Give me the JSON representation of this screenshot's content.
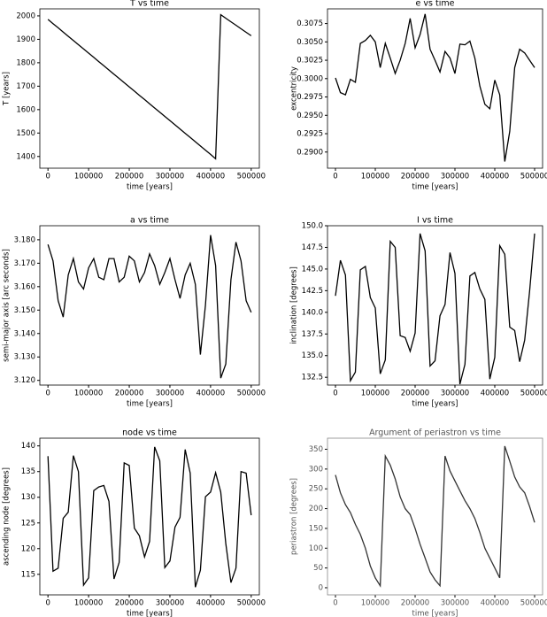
{
  "chart_data": [
    {
      "type": "line",
      "title": "T vs time",
      "xlabel": "time [years]",
      "ylabel": "T [years]",
      "color": "#000000",
      "x": [
        0,
        12500,
        25000,
        37500,
        50000,
        62500,
        75000,
        87500,
        100000,
        112500,
        125000,
        137500,
        150000,
        162500,
        175000,
        187500,
        200000,
        212500,
        225000,
        237500,
        250000,
        262500,
        275000,
        287500,
        300000,
        312500,
        325000,
        337500,
        350000,
        362500,
        375000,
        387500,
        400000,
        412500,
        425000,
        437500,
        450000,
        462500,
        475000,
        487500,
        500000
      ],
      "values": [
        1985,
        1967,
        1949,
        1931,
        1913,
        1895,
        1877,
        1859,
        1841,
        1823,
        1805,
        1787,
        1769,
        1751,
        1733,
        1715,
        1697,
        1679,
        1661,
        1643,
        1625,
        1607,
        1589,
        1571,
        1553,
        1535,
        1517,
        1499,
        1481,
        1463,
        1445,
        1427,
        1409,
        1390,
        2005,
        1990,
        1975,
        1960,
        1945,
        1930,
        1915
      ],
      "xlim": [
        -20000,
        520000
      ],
      "xticks": [
        0,
        100000,
        200000,
        300000,
        400000,
        500000
      ],
      "ylim": [
        1350,
        2030
      ],
      "yticks": [
        1400,
        1500,
        1600,
        1700,
        1800,
        1900,
        2000
      ]
    },
    {
      "type": "line",
      "title": "e vs time",
      "xlabel": "time [years]",
      "ylabel": "excentricity",
      "color": "#000000",
      "x": [
        0,
        12500,
        25000,
        37500,
        50000,
        62500,
        75000,
        87500,
        100000,
        112500,
        125000,
        137500,
        150000,
        162500,
        175000,
        187500,
        200000,
        212500,
        225000,
        237500,
        250000,
        262500,
        275000,
        287500,
        300000,
        312500,
        325000,
        337500,
        350000,
        362500,
        375000,
        387500,
        400000,
        412500,
        425000,
        437500,
        450000,
        462500,
        475000,
        487500,
        500000
      ],
      "values": [
        0.3001,
        0.2981,
        0.2978,
        0.2999,
        0.2995,
        0.3048,
        0.3052,
        0.3059,
        0.305,
        0.3015,
        0.3048,
        0.3028,
        0.3007,
        0.3025,
        0.3048,
        0.3082,
        0.3042,
        0.306,
        0.3088,
        0.304,
        0.3025,
        0.3009,
        0.3037,
        0.3028,
        0.3007,
        0.3047,
        0.3046,
        0.3051,
        0.3028,
        0.299,
        0.2965,
        0.2959,
        0.2998,
        0.2978,
        0.2887,
        0.2928,
        0.3015,
        0.304,
        0.3035,
        0.3025,
        0.3015
      ],
      "xlim": [
        -20000,
        520000
      ],
      "xticks": [
        0,
        100000,
        200000,
        300000,
        400000,
        500000
      ],
      "ylim": [
        0.2878,
        0.3095
      ],
      "yticks": [
        {
          "value": 0.29,
          "label": "0.2900"
        },
        {
          "value": 0.2925,
          "label": "0.2925"
        },
        {
          "value": 0.295,
          "label": "0.2950"
        },
        {
          "value": 0.2975,
          "label": "0.2975"
        },
        {
          "value": 0.3,
          "label": "0.3000"
        },
        {
          "value": 0.3025,
          "label": "0.3025"
        },
        {
          "value": 0.305,
          "label": "0.3050"
        },
        {
          "value": 0.3075,
          "label": "0.3075"
        }
      ]
    },
    {
      "type": "line",
      "title": "a vs time",
      "xlabel": "time [years]",
      "ylabel": "semi-major axis [arc seconds]",
      "color": "#000000",
      "x": [
        0,
        12500,
        25000,
        37500,
        50000,
        62500,
        75000,
        87500,
        100000,
        112500,
        125000,
        137500,
        150000,
        162500,
        175000,
        187500,
        200000,
        212500,
        225000,
        237500,
        250000,
        262500,
        275000,
        287500,
        300000,
        312500,
        325000,
        337500,
        350000,
        362500,
        375000,
        387500,
        400000,
        412500,
        425000,
        437500,
        450000,
        462500,
        475000,
        487500,
        500000
      ],
      "values": [
        3.178,
        3.171,
        3.154,
        3.147,
        3.165,
        3.172,
        3.162,
        3.159,
        3.168,
        3.172,
        3.164,
        3.163,
        3.172,
        3.172,
        3.162,
        3.164,
        3.173,
        3.171,
        3.162,
        3.166,
        3.174,
        3.169,
        3.161,
        3.166,
        3.172,
        3.163,
        3.155,
        3.165,
        3.17,
        3.161,
        3.131,
        3.152,
        3.182,
        3.169,
        3.121,
        3.127,
        3.163,
        3.179,
        3.171,
        3.154,
        3.149
      ],
      "xlim": [
        -20000,
        520000
      ],
      "xticks": [
        0,
        100000,
        200000,
        300000,
        400000,
        500000
      ],
      "ylim": [
        3.118,
        3.186
      ],
      "yticks": [
        {
          "value": 3.12,
          "label": "3.120"
        },
        {
          "value": 3.13,
          "label": "3.130"
        },
        {
          "value": 3.14,
          "label": "3.140"
        },
        {
          "value": 3.15,
          "label": "3.150"
        },
        {
          "value": 3.16,
          "label": "3.160"
        },
        {
          "value": 3.17,
          "label": "3.170"
        },
        {
          "value": 3.18,
          "label": "3.180"
        }
      ]
    },
    {
      "type": "line",
      "title": "I vs time",
      "xlabel": "time [years]",
      "ylabel": "inclination [degrees]",
      "color": "#000000",
      "x": [
        0,
        12500,
        25000,
        37500,
        50000,
        62500,
        75000,
        87500,
        100000,
        112500,
        125000,
        137500,
        150000,
        162500,
        175000,
        187500,
        200000,
        212500,
        225000,
        237500,
        250000,
        262500,
        275000,
        287500,
        300000,
        312500,
        325000,
        337500,
        350000,
        362500,
        375000,
        387500,
        400000,
        412500,
        425000,
        437500,
        450000,
        462500,
        475000,
        487500,
        500000
      ],
      "values": [
        141.9,
        146.0,
        144.3,
        132.1,
        133.1,
        144.9,
        145.3,
        141.7,
        140.5,
        132.9,
        134.5,
        148.2,
        147.5,
        137.3,
        137.1,
        135.5,
        137.6,
        149.1,
        147.1,
        133.8,
        134.4,
        139.6,
        140.9,
        146.9,
        144.5,
        131.7,
        134.0,
        144.2,
        144.6,
        142.7,
        141.5,
        132.3,
        134.8,
        147.7,
        146.7,
        138.3,
        137.9,
        134.3,
        136.8,
        142.5,
        149.1
      ],
      "xlim": [
        -20000,
        520000
      ],
      "xticks": [
        0,
        100000,
        200000,
        300000,
        400000,
        500000
      ],
      "ylim": [
        131.6,
        150
      ],
      "yticks": [
        132.5,
        {
          "value": 135,
          "label": "135.0"
        },
        137.5,
        {
          "value": 140,
          "label": "140.0"
        },
        142.5,
        {
          "value": 145,
          "label": "145.0"
        },
        147.5,
        {
          "value": 150,
          "label": "150.0"
        }
      ]
    },
    {
      "type": "line",
      "title": "node vs time",
      "xlabel": "time [years]",
      "ylabel": "ascending node [degrees]",
      "color": "#000000",
      "x": [
        0,
        12500,
        25000,
        37500,
        50000,
        62500,
        75000,
        87500,
        100000,
        112500,
        125000,
        137500,
        150000,
        162500,
        175000,
        187500,
        200000,
        212500,
        225000,
        237500,
        250000,
        262500,
        275000,
        287500,
        300000,
        312500,
        325000,
        337500,
        350000,
        362500,
        375000,
        387500,
        400000,
        412500,
        425000,
        437500,
        450000,
        462500,
        475000,
        487500,
        500000
      ],
      "values": [
        138.0,
        115.6,
        116.2,
        125.9,
        127.1,
        138.1,
        135.0,
        112.9,
        114.3,
        131.3,
        132.0,
        132.3,
        129.2,
        114.1,
        117.3,
        136.7,
        136.2,
        124.0,
        122.5,
        118.4,
        121.4,
        139.8,
        137.1,
        116.3,
        117.6,
        124.2,
        126.1,
        139.3,
        134.7,
        112.5,
        115.8,
        130.1,
        131.0,
        134.8,
        131.0,
        121.0,
        113.4,
        116.2,
        135.0,
        134.7,
        126.5
      ],
      "xlim": [
        -20000,
        520000
      ],
      "xticks": [
        0,
        100000,
        200000,
        300000,
        400000,
        500000
      ],
      "ylim": [
        111,
        141.5
      ],
      "yticks": [
        115,
        120,
        125,
        130,
        135,
        140
      ]
    },
    {
      "type": "line",
      "title": "Argument of periastron vs time",
      "xlabel": "time [years]",
      "ylabel": "periastron [degrees]",
      "color": "#333333",
      "x": [
        0,
        12500,
        25000,
        37500,
        50000,
        62500,
        75000,
        87500,
        100000,
        112500,
        125000,
        137500,
        150000,
        162500,
        175000,
        187500,
        200000,
        212500,
        225000,
        237500,
        250000,
        262500,
        275000,
        287500,
        300000,
        312500,
        325000,
        337500,
        350000,
        362500,
        375000,
        387500,
        400000,
        412500,
        425000,
        437500,
        450000,
        462500,
        475000,
        487500,
        500000
      ],
      "values": [
        285,
        240,
        210,
        190,
        160,
        135,
        100,
        55,
        25,
        5,
        333,
        310,
        275,
        230,
        200,
        185,
        150,
        110,
        75,
        40,
        20,
        5,
        333,
        295,
        270,
        245,
        220,
        200,
        175,
        140,
        100,
        75,
        50,
        25,
        358,
        320,
        280,
        255,
        240,
        205,
        165
      ],
      "xlim": [
        -20000,
        520000
      ],
      "xticks": [
        0,
        100000,
        200000,
        300000,
        400000,
        500000
      ],
      "ylim": [
        -18,
        378
      ],
      "yticks": [
        0,
        50,
        100,
        150,
        200,
        250,
        300,
        350
      ]
    }
  ]
}
